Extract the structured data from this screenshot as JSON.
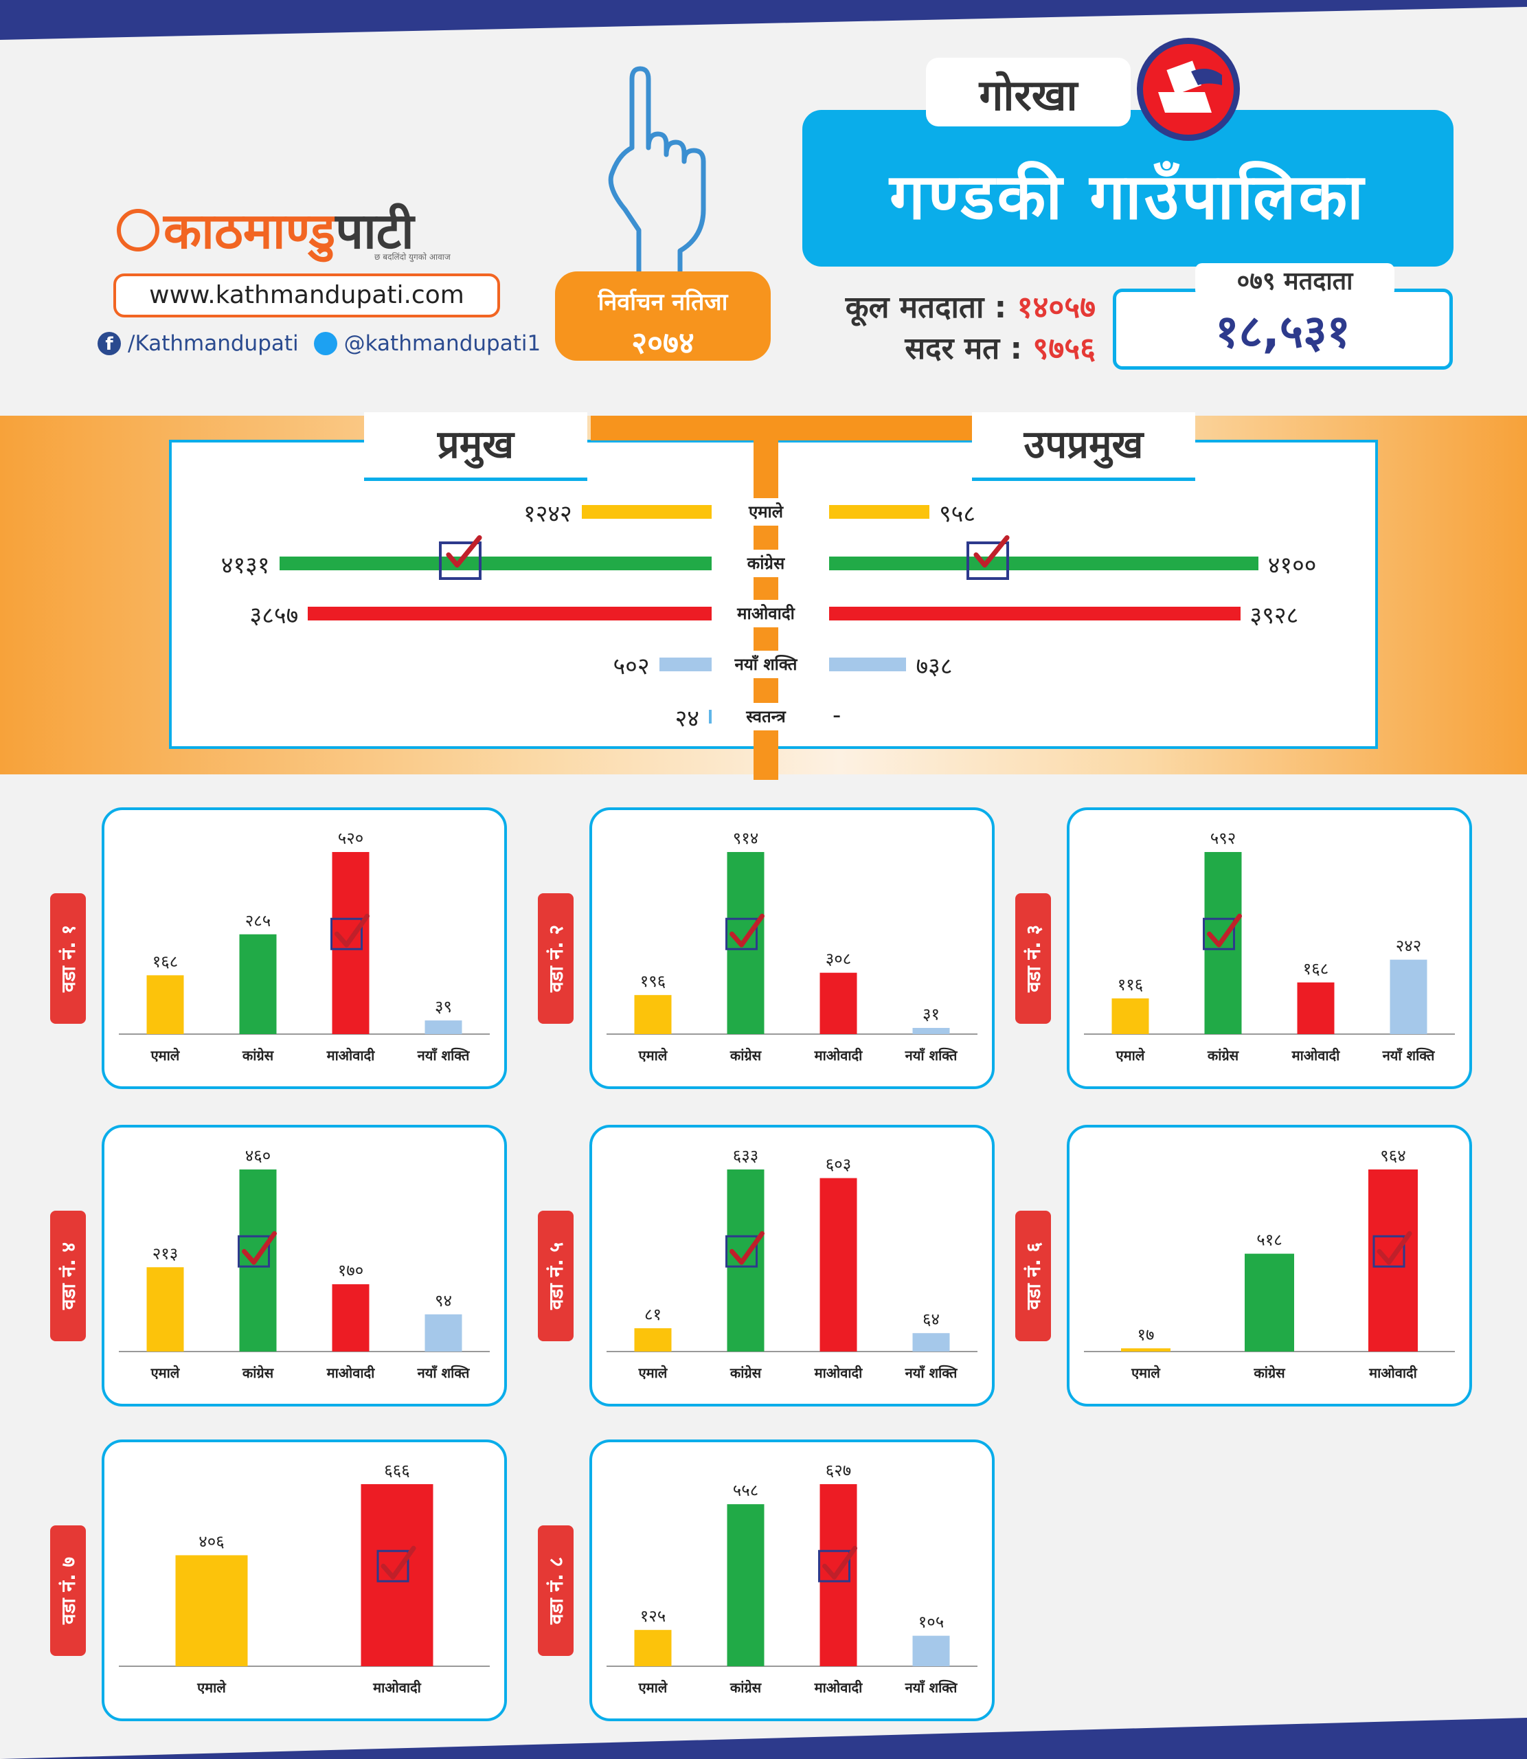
{
  "brand": {
    "name_part1": "काठमाण्डु",
    "name_part2": "पाटी",
    "tagline": "छ बदलिंदो युगको आवाज",
    "website": "www.kathmandupati.com",
    "facebook": "/Kathmandupati",
    "twitter": "@kathmandupati1"
  },
  "badge": {
    "line1": "निर्वाचन नतिजा",
    "line2": "२०७४"
  },
  "header": {
    "district": "गोरखा",
    "title": "गण्डकी गाउँपालिका",
    "total_voters_label": "कूल मतदाता :",
    "total_voters_value": "१४०५७",
    "valid_votes_label": "सदर मत :",
    "valid_votes_value": "९७५६",
    "voters_079_label": "०७९ मतदाता",
    "voters_079_value": "१८,५३१"
  },
  "colors": {
    "uml": "#fcc30b",
    "congress": "#21aa47",
    "maoist": "#ed1c24",
    "naya_shakti": "#a5c8ea",
    "independent": "#5fb5e8",
    "accent_blue": "#0aadea",
    "accent_orange": "#f7941d",
    "check_box": "#2d3a8c",
    "check_mark": "#c0202a"
  },
  "summary": {
    "left_heading": "प्रमुख",
    "right_heading": "उपप्रमुख",
    "rows": [
      {
        "party": "एमाले",
        "left_label": "१२४२",
        "right_label": "९५८"
      },
      {
        "party": "कांग्रेस",
        "left_label": "४१३१",
        "right_label": "४१००"
      },
      {
        "party": "माओवादी",
        "left_label": "३८५७",
        "right_label": "३९२८"
      },
      {
        "party": "नयाँ शक्ति",
        "left_label": "५०२",
        "right_label": "७३८"
      },
      {
        "party": "स्वतन्त्र",
        "left_label": "२४",
        "right_label": "-"
      }
    ]
  },
  "chart_data": [
    {
      "type": "bar",
      "orientation": "horizontal",
      "section": "प्रमुख",
      "categories": [
        "एमाले",
        "कांग्रेस",
        "माओवादी",
        "नयाँ शक्ति",
        "स्वतन्त्र"
      ],
      "values": [
        1242,
        4131,
        3857,
        502,
        24
      ],
      "winner": "कांग्रेस"
    },
    {
      "type": "bar",
      "orientation": "horizontal",
      "section": "उपप्रमुख",
      "categories": [
        "एमाले",
        "कांग्रेस",
        "माओवादी",
        "नयाँ शक्ति",
        "स्वतन्त्र"
      ],
      "values": [
        958,
        4100,
        3928,
        738,
        null
      ],
      "winner": "कांग्रेस"
    },
    {
      "type": "bar",
      "ward": "वडा नं. १",
      "categories": [
        "एमाले",
        "कांग्रेस",
        "माओवादी",
        "नयाँ शक्ति"
      ],
      "values": [
        168,
        285,
        520,
        39
      ],
      "labels": [
        "१६८",
        "२८५",
        "५२०",
        "३९"
      ],
      "winner": "माओवादी"
    },
    {
      "type": "bar",
      "ward": "वडा नं. २",
      "categories": [
        "एमाले",
        "कांग्रेस",
        "माओवादी",
        "नयाँ शक्ति"
      ],
      "values": [
        196,
        914,
        308,
        31
      ],
      "labels": [
        "१९६",
        "९१४",
        "३०८",
        "३१"
      ],
      "winner": "कांग्रेस"
    },
    {
      "type": "bar",
      "ward": "वडा नं. ३",
      "categories": [
        "एमाले",
        "कांग्रेस",
        "माओवादी",
        "नयाँ शक्ति"
      ],
      "values": [
        116,
        592,
        168,
        242
      ],
      "labels": [
        "११६",
        "५९२",
        "१६८",
        "२४२"
      ],
      "winner": "कांग्रेस"
    },
    {
      "type": "bar",
      "ward": "वडा नं. ४",
      "categories": [
        "एमाले",
        "कांग्रेस",
        "माओवादी",
        "नयाँ शक्ति"
      ],
      "values": [
        213,
        460,
        170,
        94
      ],
      "labels": [
        "२१३",
        "४६०",
        "१७०",
        "९४"
      ],
      "winner": "कांग्रेस"
    },
    {
      "type": "bar",
      "ward": "वडा नं. ५",
      "categories": [
        "एमाले",
        "कांग्रेस",
        "माओवादी",
        "नयाँ शक्ति"
      ],
      "values": [
        81,
        633,
        603,
        64
      ],
      "labels": [
        "८१",
        "६३३",
        "६०३",
        "६४"
      ],
      "winner": "कांग्रेस"
    },
    {
      "type": "bar",
      "ward": "वडा नं. ६",
      "categories": [
        "एमाले",
        "कांग्रेस",
        "माओवादी"
      ],
      "values": [
        17,
        518,
        964
      ],
      "labels": [
        "१७",
        "५१८",
        "९६४"
      ],
      "winner": "माओवादी"
    },
    {
      "type": "bar",
      "ward": "वडा नं. ७",
      "categories": [
        "एमाले",
        "माओवादी"
      ],
      "values": [
        406,
        666
      ],
      "labels": [
        "४०६",
        "६६६"
      ],
      "winner": "माओवादी"
    },
    {
      "type": "bar",
      "ward": "वडा नं. ८",
      "categories": [
        "एमाले",
        "कांग्रेस",
        "माओवादी",
        "नयाँ शक्ति"
      ],
      "values": [
        125,
        558,
        627,
        105
      ],
      "labels": [
        "१२५",
        "५५८",
        "६२७",
        "१०५"
      ],
      "winner": "माओवादी"
    }
  ]
}
